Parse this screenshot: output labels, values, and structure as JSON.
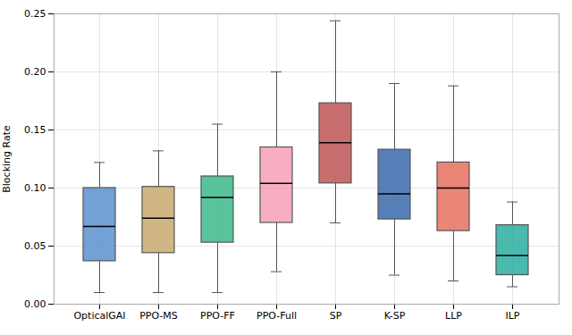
{
  "chart_data": {
    "type": "box",
    "categories": [
      "OpticalGAI",
      "PPO-MS",
      "PPO-FF",
      "PPO-Full",
      "SP",
      "K-SP",
      "LLP",
      "ILP"
    ],
    "colors": [
      "#5b8fce",
      "#c8a96e",
      "#3cb88a",
      "#f4a0b5",
      "#be5555",
      "#3a6aad",
      "#e87060",
      "#2aada0"
    ],
    "box_stats": [
      {
        "whislo": 0.01,
        "q1": 0.037,
        "med": 0.067,
        "q3": 0.1,
        "whishi": 0.122
      },
      {
        "whislo": 0.01,
        "q1": 0.044,
        "med": 0.074,
        "q3": 0.101,
        "whishi": 0.132
      },
      {
        "whislo": 0.01,
        "q1": 0.053,
        "med": 0.092,
        "q3": 0.11,
        "whishi": 0.155
      },
      {
        "whislo": 0.028,
        "q1": 0.07,
        "med": 0.104,
        "q3": 0.135,
        "whishi": 0.2
      },
      {
        "whislo": 0.07,
        "q1": 0.104,
        "med": 0.139,
        "q3": 0.173,
        "whishi": 0.244
      },
      {
        "whislo": 0.025,
        "q1": 0.073,
        "med": 0.095,
        "q3": 0.133,
        "whishi": 0.19
      },
      {
        "whislo": 0.02,
        "q1": 0.063,
        "med": 0.1,
        "q3": 0.122,
        "whishi": 0.188
      },
      {
        "whislo": 0.015,
        "q1": 0.025,
        "med": 0.042,
        "q3": 0.068,
        "whishi": 0.088
      }
    ],
    "ylabel": "Blocking Rate",
    "ylim": [
      0.0,
      0.25
    ],
    "yticks": [
      {
        "value": 0,
        "label": "0.00"
      },
      0.05,
      {
        "value": 0.1,
        "label": "0.10"
      },
      0.15,
      {
        "value": 0.2,
        "label": "0.20"
      },
      0.25
    ],
    "grid": true
  }
}
